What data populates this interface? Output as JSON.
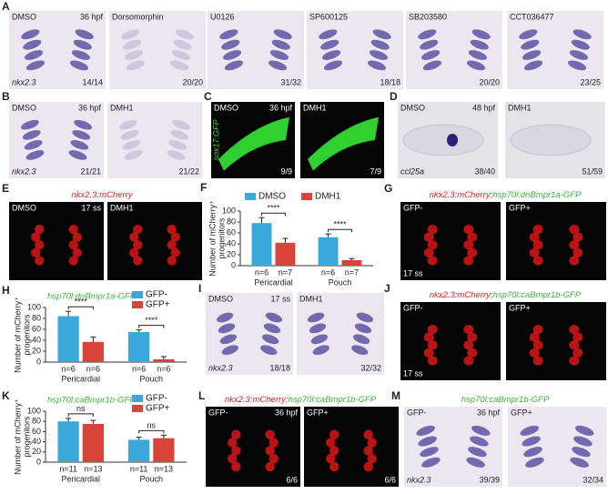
{
  "panels": [
    {
      "label": "A",
      "images": [
        {
          "top_left": "DMSO",
          "top_right": "36 hpf",
          "bottom_left": "nkx2.3",
          "bottom_right": "14/14"
        },
        {
          "top_left": "Dorsomorphin",
          "bottom_right": "20/20"
        },
        {
          "top_left": "U0126",
          "bottom_right": "31/32"
        },
        {
          "top_left": "SP600125",
          "bottom_right": "18/18"
        },
        {
          "top_left": "SB203580",
          "bottom_right": "20/20"
        },
        {
          "top_left": "CCT036477",
          "bottom_right": "23/25"
        }
      ]
    },
    {
      "label": "B",
      "images": [
        {
          "top_left": "DMSO",
          "top_right": "36 hpf",
          "bottom_left": "nkx2.3",
          "bottom_right": "21/21"
        },
        {
          "top_left": "DMH1",
          "bottom_right": "21/22"
        }
      ]
    },
    {
      "label": "C",
      "images": [
        {
          "top_left": "DMSO",
          "top_right": "36 hpf",
          "bottom_left": "sox17:GFP",
          "bottom_right": "9/9"
        },
        {
          "top_left": "DMH1",
          "bottom_right": "7/9"
        }
      ]
    },
    {
      "label": "D",
      "images": [
        {
          "top_left": "DMSO",
          "top_right": "48 hpf",
          "bottom_left": "ccl25a",
          "bottom_right": "38/40"
        },
        {
          "top_left": "DMH1",
          "bottom_right": "51/59"
        }
      ]
    },
    {
      "label": "E",
      "title_parts": [
        "nkx2.3:mCherry"
      ],
      "images": [
        {
          "top_left": "DMSO",
          "top_right": "17 ss"
        },
        {
          "top_left": "DMH1"
        }
      ]
    },
    {
      "label": "G",
      "title_parts": [
        "nkx2.3:mCherry;",
        "hsp70l:dnBmpr1a-GFP"
      ],
      "images": [
        {
          "top_left": "GFP-",
          "bottom_left": "17 ss"
        },
        {
          "top_left": "GFP+"
        }
      ]
    },
    {
      "label": "I",
      "images": [
        {
          "top_left": "DMSO",
          "top_right": "17 ss",
          "bottom_left": "nkx2.3",
          "bottom_right": "18/18"
        },
        {
          "top_left": "DMH1",
          "bottom_right": "32/32"
        }
      ]
    },
    {
      "label": "J",
      "title_parts": [
        "nkx2.3:mCherry;",
        "hsp70l:caBmpr1b-GFP"
      ],
      "images": [
        {
          "top_left": "GFP-",
          "bottom_left": "17 ss"
        },
        {
          "top_left": "GFP+"
        }
      ]
    },
    {
      "label": "L",
      "title_parts": [
        "nkx2.3:mCherry;",
        "hsp70l:caBmpr1b-GFP"
      ],
      "images": [
        {
          "top_left": "GFP-",
          "top_right": "36 hpf",
          "bottom_right": "6/6"
        },
        {
          "top_left": "GFP+",
          "bottom_right": "6/6"
        }
      ]
    },
    {
      "label": "M",
      "title_parts": [
        "hsp70l:caBmpr1b-GFP"
      ],
      "images": [
        {
          "top_left": "GFP-",
          "top_right": "36 hpf",
          "bottom_left": "nkx2.3",
          "bottom_right": "39/39"
        },
        {
          "top_left": "GFP+",
          "bottom_right": "32/34"
        }
      ]
    }
  ],
  "chart_data": [
    {
      "type": "bar",
      "label": "F",
      "ylabel": [
        "Number of mCherry⁺",
        "progenitors"
      ],
      "categories": [
        "Pericardial",
        "Pouch"
      ],
      "series": [
        {
          "name": "DMSO",
          "color": "#3ba8dc",
          "values": [
            78,
            52
          ],
          "errors": [
            10,
            6
          ],
          "n_labels": [
            "n=6",
            "n=6"
          ]
        },
        {
          "name": "DMH1",
          "color": "#d9443a",
          "values": [
            42,
            10
          ],
          "errors": [
            8,
            3
          ],
          "n_labels": [
            "n=7",
            "n=7"
          ]
        }
      ],
      "annotations": [
        "****",
        "****"
      ],
      "ylim": [
        0,
        100
      ],
      "yticks": [
        0,
        20,
        40,
        60,
        80,
        100
      ]
    },
    {
      "type": "bar",
      "label": "H",
      "title": "hsp70l:dnBmpr1a-GFP",
      "ylabel": [
        "Number of mCherry⁺",
        "progenitors"
      ],
      "categories": [
        "Pericardial",
        "Pouch"
      ],
      "series": [
        {
          "name": "GFP-",
          "color": "#3ba8dc",
          "values": [
            84,
            55
          ],
          "errors": [
            9,
            4
          ],
          "n_labels": [
            "n=6",
            "n=6"
          ]
        },
        {
          "name": "GFP+",
          "color": "#d9443a",
          "values": [
            37,
            5
          ],
          "errors": [
            9,
            5
          ],
          "n_labels": [
            "n=6",
            "n=6"
          ]
        }
      ],
      "annotations": [
        "****",
        "****"
      ],
      "ylim": [
        0,
        100
      ],
      "yticks": [
        0,
        20,
        40,
        60,
        80,
        100
      ]
    },
    {
      "type": "bar",
      "label": "K",
      "title": "hsp70l:caBmpr1b-GFP",
      "ylabel": [
        "Number of mCherry⁺",
        "progenitors"
      ],
      "categories": [
        "Pericardial",
        "Pouch"
      ],
      "series": [
        {
          "name": "GFP-",
          "color": "#3ba8dc",
          "values": [
            80,
            44
          ],
          "errors": [
            6,
            5
          ],
          "n_labels": [
            "n=11",
            "n=11"
          ]
        },
        {
          "name": "GFP+",
          "color": "#d9443a",
          "values": [
            75,
            47
          ],
          "errors": [
            7,
            6
          ],
          "n_labels": [
            "n=13",
            "n=13"
          ]
        }
      ],
      "annotations": [
        "ns",
        "ns"
      ],
      "ylim": [
        0,
        100
      ],
      "yticks": [
        0,
        20,
        40,
        60,
        80,
        100
      ]
    }
  ]
}
